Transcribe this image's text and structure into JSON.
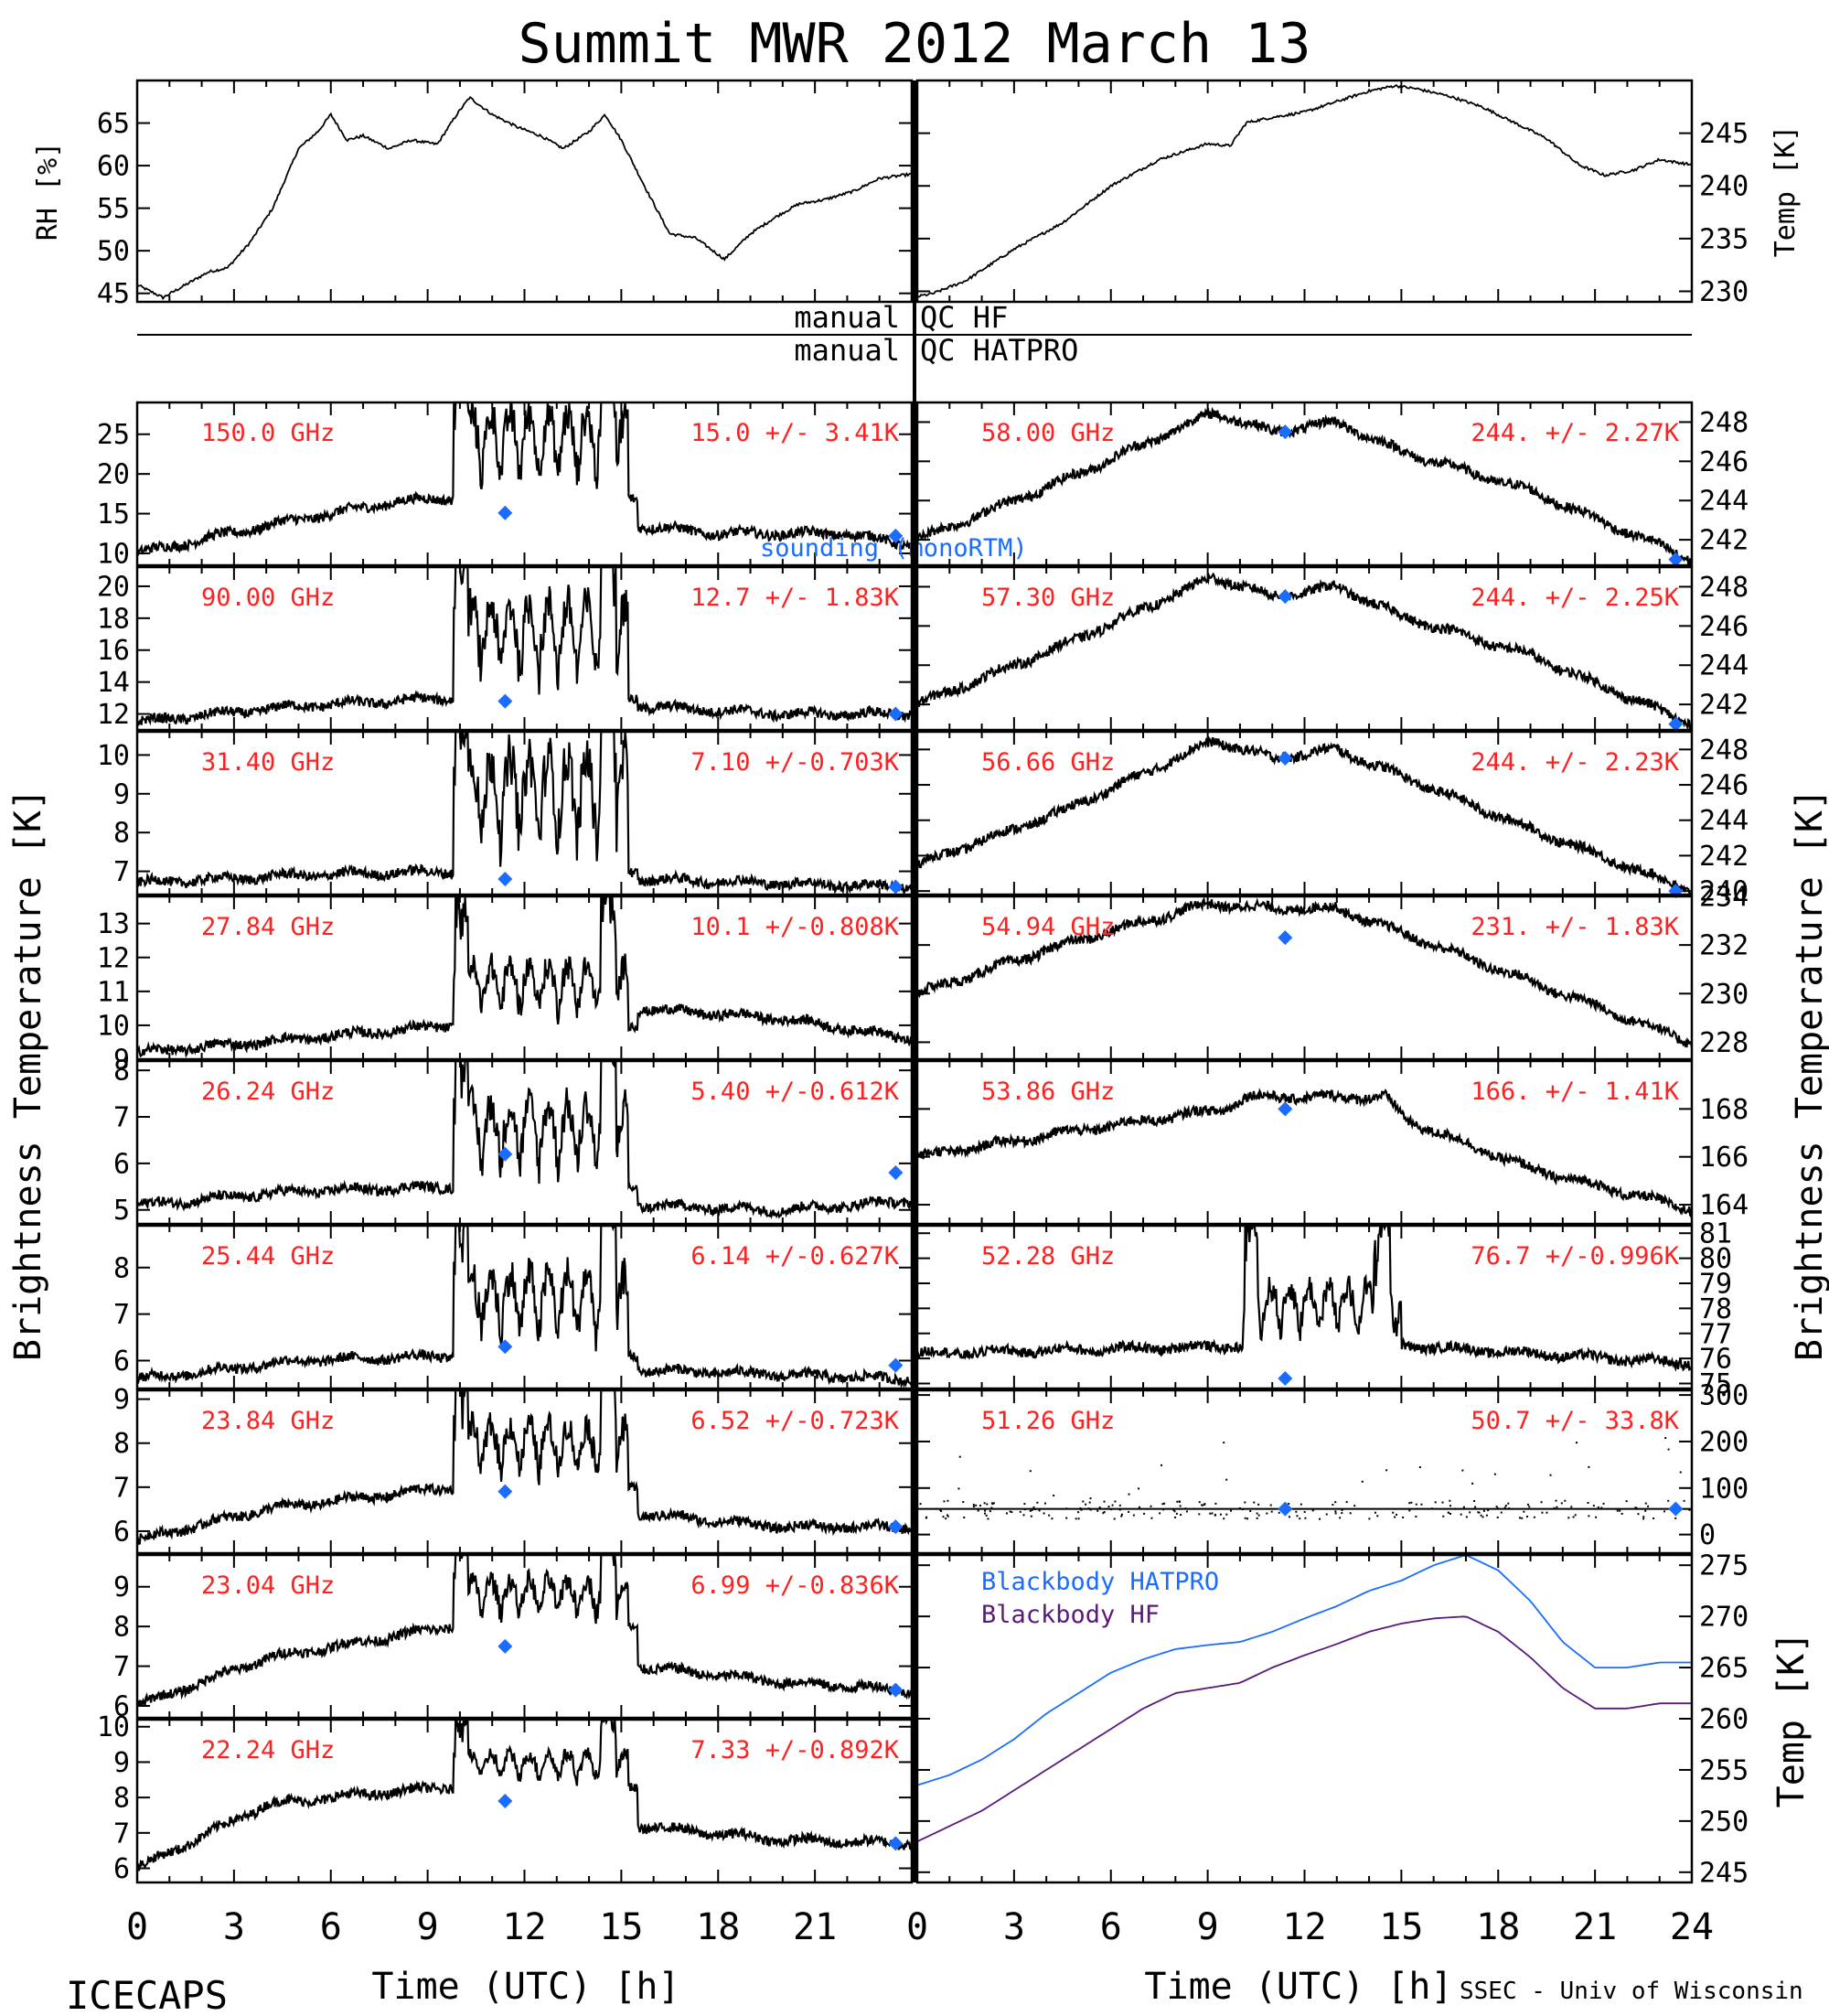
{
  "title": "Summit MWR 2012 March 13",
  "footer": {
    "left": "ICECAPS",
    "right": "SSEC - Univ of Wisconsin"
  },
  "colors": {
    "label": "#ff2020",
    "sounding": "#1a6cff",
    "blackbody_hatpro": "#1a6cff",
    "blackbody_hf": "#5a1a7a",
    "line": "#000000"
  },
  "left_ylabel": "Brightness Temperature [K]",
  "right_ylabel": "Brightness Temperature [K]",
  "qc": {
    "left1": "manual",
    "right1": "QC HF",
    "left2": "manual",
    "right2": "QC HATPRO"
  },
  "chart_data": [
    {
      "id": "rh",
      "type": "line",
      "ylabel": "RH [%]",
      "ylim": [
        44,
        70
      ],
      "yticks": [
        45,
        50,
        55,
        60,
        65
      ],
      "xlim": [
        0,
        24
      ],
      "series": [
        {
          "values_x": [
            0,
            0.8,
            1.5,
            2.2,
            2.8,
            3.5,
            4.2,
            5,
            5.6,
            6,
            6.5,
            7,
            7.8,
            8.5,
            9.3,
            9.9,
            10.3,
            11,
            11.8,
            12.5,
            13.2,
            14,
            14.5,
            15,
            15.8,
            16.5,
            17.3,
            18.2,
            19,
            19.8,
            20.5,
            21.3,
            22.2,
            23,
            24
          ],
          "values_y": [
            46,
            44.5,
            46,
            47.5,
            48,
            51,
            55,
            62,
            64,
            66,
            63,
            63.5,
            62,
            63,
            62.5,
            66,
            68,
            66,
            64.5,
            63.5,
            62,
            64,
            66,
            63,
            57,
            52,
            51.5,
            49,
            52,
            54,
            55.5,
            56,
            57,
            58.5,
            59
          ]
        }
      ]
    },
    {
      "id": "temp",
      "type": "line",
      "ylabel": "Temp [K]",
      "ylim": [
        229,
        250
      ],
      "yticks": [
        230,
        235,
        240,
        245
      ],
      "xlim": [
        0,
        24
      ],
      "series": [
        {
          "values_x": [
            0,
            0.5,
            1.5,
            3,
            4.5,
            6,
            7.5,
            9,
            9.7,
            10.2,
            11,
            12,
            13,
            14,
            14.8,
            15.5,
            16.5,
            17.5,
            18.5,
            19.5,
            20.5,
            21.3,
            22.2,
            23,
            24
          ],
          "values_y": [
            229.5,
            229.8,
            231,
            234,
            236.5,
            240,
            242.5,
            244,
            243.8,
            246,
            246.5,
            247,
            248,
            249,
            249.5,
            249.2,
            248.5,
            247.5,
            246,
            244.5,
            242,
            241,
            241.5,
            242.5,
            242
          ]
        }
      ]
    },
    {
      "id": "hf-150",
      "type": "line",
      "label": "150.0 GHz",
      "stats": "15.0 +/-  3.41K",
      "ylim": [
        8.5,
        29
      ],
      "yticks": [
        10,
        15,
        20,
        25
      ],
      "base": [
        [
          0,
          10
        ],
        [
          4,
          13.5
        ],
        [
          8,
          16.5
        ],
        [
          9.7,
          17
        ]
      ],
      "events": [
        [
          9.8,
          15.2,
          12,
          9
        ]
      ],
      "tail": [
        [
          15.5,
          13.5
        ],
        [
          18,
          12.5
        ],
        [
          22,
          12.5
        ],
        [
          24,
          11
        ]
      ],
      "sounding": [
        [
          11.4,
          15.1
        ],
        [
          23.5,
          12.2
        ]
      ],
      "annotation": "sounding (monoRTM)"
    },
    {
      "id": "hf-90",
      "type": "line",
      "label": "90.00 GHz",
      "stats": "12.7 +/-  1.83K",
      "ylim": [
        11,
        21.2
      ],
      "yticks": [
        12,
        14,
        16,
        18,
        20
      ],
      "base": [
        [
          0,
          11.5
        ],
        [
          5,
          12.5
        ],
        [
          9.7,
          13
        ]
      ],
      "events": [
        [
          9.8,
          15.2,
          7,
          5
        ]
      ],
      "tail": [
        [
          15.5,
          12.5
        ],
        [
          20,
          12
        ],
        [
          24,
          12
        ]
      ],
      "sounding": [
        [
          11.4,
          12.8
        ],
        [
          23.5,
          12
        ]
      ]
    },
    {
      "id": "hf-31",
      "type": "line",
      "label": "31.40 GHz",
      "stats": "7.10 +/-0.703K",
      "ylim": [
        6.4,
        10.6
      ],
      "yticks": [
        7,
        8,
        9,
        10
      ],
      "base": [
        [
          0,
          6.7
        ],
        [
          5,
          6.9
        ],
        [
          9.7,
          7
        ]
      ],
      "events": [
        [
          9.8,
          15.2,
          3,
          2.5
        ]
      ],
      "tail": [
        [
          15.5,
          6.8
        ],
        [
          24,
          6.6
        ]
      ],
      "sounding": [
        [
          11.4,
          6.8
        ],
        [
          23.5,
          6.6
        ]
      ]
    },
    {
      "id": "hf-27",
      "type": "line",
      "label": "27.84 GHz",
      "stats": "10.1 +/-0.808K",
      "ylim": [
        9,
        13.8
      ],
      "yticks": [
        9,
        10,
        11,
        12,
        13
      ],
      "base": [
        [
          0,
          9.2
        ],
        [
          5,
          9.6
        ],
        [
          9.7,
          10
        ]
      ],
      "events": [
        [
          9.8,
          15.2,
          2.8,
          1.5
        ]
      ],
      "tail": [
        [
          15.5,
          10.5
        ],
        [
          20,
          10.2
        ],
        [
          24,
          9.6
        ]
      ],
      "sounding": []
    },
    {
      "id": "hf-26",
      "type": "line",
      "label": "26.24 GHz",
      "stats": "5.40 +/-0.612K",
      "ylim": [
        4.7,
        8.2
      ],
      "yticks": [
        5,
        6,
        7,
        8
      ],
      "base": [
        [
          0,
          5.1
        ],
        [
          5,
          5.4
        ],
        [
          9.7,
          5.5
        ]
      ],
      "events": [
        [
          9.8,
          15.2,
          2.5,
          1.5
        ]
      ],
      "tail": [
        [
          15.5,
          5.1
        ],
        [
          20,
          5
        ],
        [
          24,
          5.2
        ]
      ],
      "sounding": [
        [
          11.4,
          6.2
        ],
        [
          23.5,
          5.8
        ]
      ]
    },
    {
      "id": "hf-25",
      "type": "line",
      "label": "25.44 GHz",
      "stats": "6.14 +/-0.627K",
      "ylim": [
        5.4,
        8.9
      ],
      "yticks": [
        6,
        7,
        8
      ],
      "base": [
        [
          0,
          5.6
        ],
        [
          5,
          6
        ],
        [
          9.7,
          6.1
        ]
      ],
      "events": [
        [
          9.8,
          15.2,
          2.5,
          1.5
        ]
      ],
      "tail": [
        [
          15.5,
          5.8
        ],
        [
          20,
          5.7
        ],
        [
          24,
          5.6
        ]
      ],
      "sounding": [
        [
          11.4,
          6.3
        ],
        [
          23.5,
          5.9
        ]
      ]
    },
    {
      "id": "hf-23",
      "type": "line",
      "label": "23.84 GHz",
      "stats": "6.52 +/-0.723K",
      "ylim": [
        5.5,
        9.2
      ],
      "yticks": [
        6,
        7,
        8,
        9
      ],
      "base": [
        [
          0,
          5.8
        ],
        [
          4,
          6.5
        ],
        [
          9.7,
          7
        ]
      ],
      "events": [
        [
          9.8,
          15.2,
          2,
          1.2
        ]
      ],
      "tail": [
        [
          15.5,
          6.4
        ],
        [
          20,
          6.1
        ],
        [
          24,
          6.1
        ]
      ],
      "sounding": [
        [
          11.4,
          6.9
        ],
        [
          23.5,
          6.1
        ]
      ]
    },
    {
      "id": "hf-23b",
      "type": "line",
      "label": "23.04 GHz",
      "stats": "6.99 +/-0.836K",
      "ylim": [
        5.7,
        9.8
      ],
      "yticks": [
        6,
        7,
        8,
        9
      ],
      "base": [
        [
          0,
          6
        ],
        [
          4,
          7.2
        ],
        [
          9.7,
          8
        ]
      ],
      "events": [
        [
          9.8,
          15.2,
          1.8,
          1
        ]
      ],
      "tail": [
        [
          15.5,
          7
        ],
        [
          20,
          6.6
        ],
        [
          24,
          6.4
        ]
      ],
      "sounding": [
        [
          11.4,
          7.5
        ],
        [
          23.5,
          6.4
        ]
      ]
    },
    {
      "id": "hf-22",
      "type": "line",
      "label": "22.24 GHz",
      "stats": "7.33 +/-0.892K",
      "ylim": [
        5.6,
        10.2
      ],
      "yticks": [
        6,
        7,
        8,
        9,
        10
      ],
      "base": [
        [
          0,
          6
        ],
        [
          4,
          7.8
        ],
        [
          6,
          8
        ],
        [
          9.7,
          8.3
        ]
      ],
      "events": [
        [
          9.8,
          15.2,
          1.6,
          0.8
        ]
      ],
      "tail": [
        [
          15.5,
          7.2
        ],
        [
          20,
          6.8
        ],
        [
          24,
          6.7
        ]
      ],
      "sounding": [
        [
          11.4,
          7.9
        ],
        [
          23.5,
          6.7
        ]
      ]
    },
    {
      "id": "hat-58",
      "type": "line",
      "label": "58.00 GHz",
      "stats": "244. +/- 2.27K",
      "ylim": [
        240.7,
        249
      ],
      "yticks": [
        242,
        244,
        246,
        248
      ],
      "base": [
        [
          0,
          242
        ],
        [
          4.5,
          245
        ],
        [
          9.2,
          248.5
        ],
        [
          11,
          247.5
        ],
        [
          13,
          248
        ],
        [
          15,
          246.5
        ],
        [
          19,
          244.5
        ],
        [
          24,
          241
        ]
      ],
      "events": [],
      "tail": [],
      "sounding": [
        [
          11.4,
          247.5
        ],
        [
          23.5,
          241
        ]
      ]
    },
    {
      "id": "hat-57",
      "type": "line",
      "label": "57.30 GHz",
      "stats": "244. +/- 2.25K",
      "ylim": [
        240.7,
        249
      ],
      "yticks": [
        242,
        244,
        246,
        248
      ],
      "base": [
        [
          0,
          242
        ],
        [
          4.5,
          245
        ],
        [
          9.2,
          248.5
        ],
        [
          11,
          247.5
        ],
        [
          13,
          248
        ],
        [
          15,
          246.5
        ],
        [
          19,
          244.5
        ],
        [
          24,
          241
        ]
      ],
      "events": [],
      "tail": [],
      "sounding": [
        [
          11.4,
          247.5
        ],
        [
          23.5,
          241
        ]
      ]
    },
    {
      "id": "hat-56",
      "type": "line",
      "label": "56.66 GHz",
      "stats": "244. +/- 2.23K",
      "ylim": [
        239.8,
        249
      ],
      "yticks": [
        240,
        242,
        244,
        246,
        248
      ],
      "base": [
        [
          0,
          241.5
        ],
        [
          4.5,
          244.5
        ],
        [
          9.2,
          248.5
        ],
        [
          11,
          247.5
        ],
        [
          13,
          248
        ],
        [
          15,
          246.5
        ],
        [
          19,
          243.5
        ],
        [
          24,
          240
        ]
      ],
      "events": [],
      "tail": [],
      "sounding": [
        [
          11.4,
          247.5
        ],
        [
          23.5,
          240
        ]
      ]
    },
    {
      "id": "hat-54",
      "type": "line",
      "label": "54.94 GHz",
      "stats": "231. +/- 1.83K",
      "ylim": [
        227.3,
        234
      ],
      "yticks": [
        228,
        230,
        232,
        234
      ],
      "base": [
        [
          0,
          230
        ],
        [
          4.5,
          232
        ],
        [
          9,
          233.7
        ],
        [
          11,
          233.5
        ],
        [
          13,
          233.5
        ],
        [
          15,
          232.5
        ],
        [
          19,
          230.5
        ],
        [
          24,
          228
        ]
      ],
      "events": [],
      "tail": [],
      "sounding": [
        [
          11.4,
          232.3
        ]
      ]
    },
    {
      "id": "hat-53",
      "type": "line",
      "label": "53.86 GHz",
      "stats": "166. +/- 1.41K",
      "ylim": [
        163.2,
        170
      ],
      "yticks": [
        164,
        166,
        168
      ],
      "base": [
        [
          0,
          166
        ],
        [
          4.5,
          167
        ],
        [
          9.5,
          168
        ],
        [
          10.2,
          168.5
        ],
        [
          14.5,
          168.5
        ],
        [
          15.2,
          167.5
        ],
        [
          19,
          165.5
        ],
        [
          24,
          163.8
        ]
      ],
      "events": [],
      "tail": [],
      "sounding": [
        [
          11.4,
          168
        ]
      ]
    },
    {
      "id": "hat-52",
      "type": "line",
      "label": "52.28 GHz",
      "stats": "76.7 +/-0.996K",
      "ylim": [
        74.8,
        81.3
      ],
      "yticks": [
        75,
        76,
        77,
        78,
        79,
        80,
        81
      ],
      "base": [
        [
          0,
          76.2
        ],
        [
          10,
          76.5
        ]
      ],
      "events": [
        [
          10.1,
          15,
          3.5,
          2
        ]
      ],
      "tail": [
        [
          15.3,
          76.5
        ],
        [
          24,
          75.8
        ]
      ],
      "sounding": [
        [
          11.4,
          75.2
        ]
      ]
    },
    {
      "id": "hat-51",
      "type": "scatter",
      "label": "51.26 GHz",
      "stats": "50.7 +/- 33.8K",
      "ylim": [
        -40,
        310
      ],
      "yticks": [
        0,
        100,
        200,
        300
      ],
      "base": [
        [
          0,
          55
        ],
        [
          24,
          55
        ]
      ],
      "events": [],
      "tail": [],
      "sounding": [
        [
          11.4,
          55
        ],
        [
          23.5,
          55
        ]
      ]
    },
    {
      "id": "blackbody",
      "type": "line",
      "ylabel": "Temp [K]",
      "ylim": [
        244,
        276
      ],
      "yticks": [
        245,
        250,
        255,
        260,
        265,
        270,
        275
      ],
      "xlim": [
        0,
        24
      ],
      "series": [
        {
          "name": "Blackbody HATPRO",
          "values_x": [
            0,
            1,
            2,
            3,
            4,
            5,
            6,
            7,
            8,
            9,
            10,
            11,
            12,
            13,
            14,
            15,
            16,
            17,
            18,
            19,
            20,
            21,
            22,
            23,
            24
          ],
          "values_y": [
            253.5,
            254.5,
            256,
            258,
            260.5,
            262.5,
            264.5,
            265.8,
            266.8,
            267.2,
            267.5,
            268.5,
            269.8,
            271,
            272.5,
            273.5,
            275,
            276,
            274.5,
            271.5,
            267.5,
            265,
            265,
            265.5,
            265.5
          ]
        },
        {
          "name": "Blackbody HF",
          "values_x": [
            0,
            1,
            2,
            3,
            4,
            5,
            6,
            7,
            8,
            9,
            10,
            11,
            12,
            13,
            14,
            15,
            16,
            17,
            18,
            19,
            20,
            21,
            22,
            23,
            24
          ],
          "values_y": [
            248,
            249.5,
            251,
            253,
            255,
            257,
            259,
            261,
            262.5,
            263,
            263.5,
            265,
            266.2,
            267.3,
            268.5,
            269.3,
            269.8,
            270,
            268.5,
            266,
            263,
            261,
            261,
            261.5,
            261.5
          ]
        }
      ]
    }
  ],
  "xaxis": {
    "ticks_left": [
      "0",
      "3",
      "6",
      "9",
      "12",
      "15",
      "18",
      "21"
    ],
    "ticks_right": [
      "0",
      "3",
      "6",
      "9",
      "12",
      "15",
      "18",
      "21",
      "24"
    ],
    "label_left": "Time (UTC) [h]",
    "label_right": "Time (UTC) [h]"
  }
}
